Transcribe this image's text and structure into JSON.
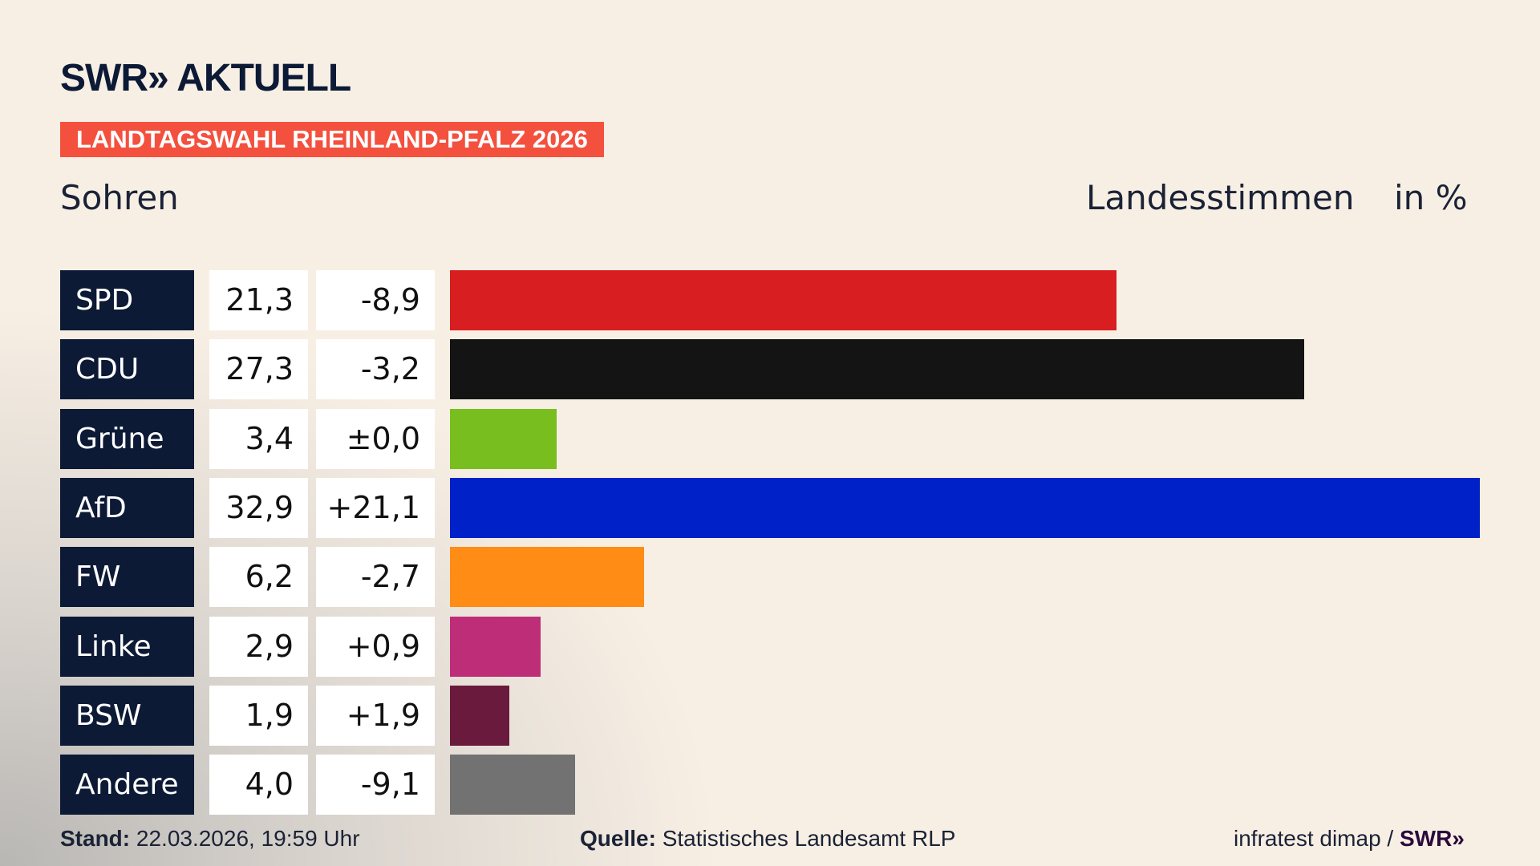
{
  "header": {
    "logo": "SWR» AKTUELL",
    "banner": "LANDTAGSWAHL RHEINLAND-PFALZ 2026",
    "place": "Sohren",
    "vote_type": "Landesstimmen",
    "unit": "in %"
  },
  "chart_data": {
    "type": "bar",
    "orientation": "horizontal",
    "categories": [
      "SPD",
      "CDU",
      "Grüne",
      "AfD",
      "FW",
      "Linke",
      "BSW",
      "Andere"
    ],
    "values": [
      21.3,
      27.3,
      3.4,
      32.9,
      6.2,
      2.9,
      1.9,
      4.0
    ],
    "value_labels": [
      "21,3",
      "27,3",
      "3,4",
      "32,9",
      "6,2",
      "2,9",
      "1,9",
      "4,0"
    ],
    "diff_labels": [
      "-8,9",
      "-3,2",
      "±0,0",
      "+21,1",
      "-2,7",
      "+0,9",
      "+1,9",
      "-9,1"
    ],
    "diffs": [
      -8.9,
      -3.2,
      0.0,
      21.1,
      -2.7,
      0.9,
      1.9,
      -9.1
    ],
    "colors": [
      "#d81e20",
      "#141414",
      "#78be1e",
      "#0021c8",
      "#ff8c14",
      "#be2d78",
      "#6a1a3c",
      "#727272"
    ],
    "xlim": [
      0,
      32.9
    ],
    "grid": false
  },
  "footer": {
    "stand_label": "Stand:",
    "stand_value": "22.03.2026, 19:59 Uhr",
    "source_label": "Quelle:",
    "source_value": "Statistisches Landesamt RLP",
    "credit": "infratest dimap /",
    "credit_logo": "SWR»"
  }
}
